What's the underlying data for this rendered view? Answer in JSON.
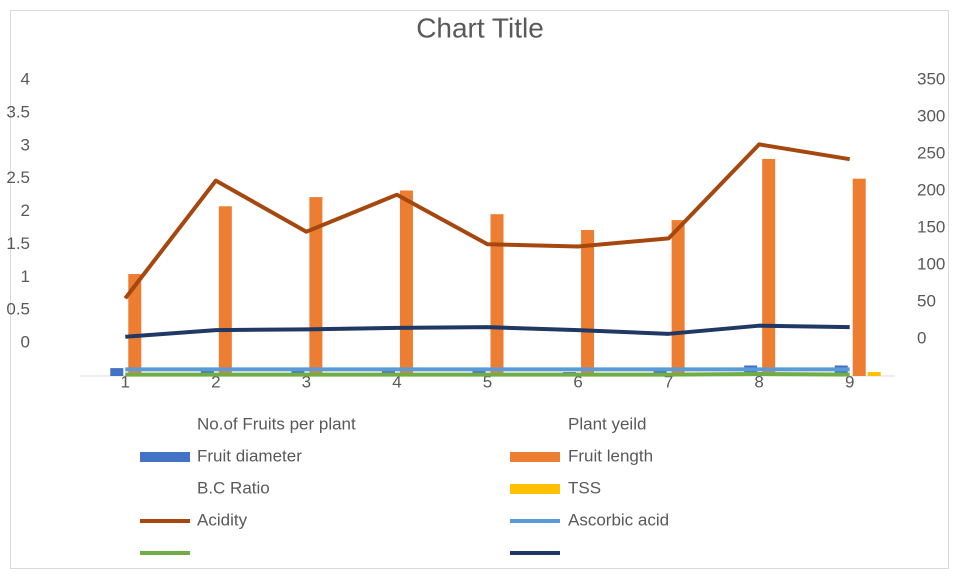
{
  "chart_data": {
    "type": "combo",
    "title": "Chart Title",
    "categories": [
      "1",
      "2",
      "3",
      "4",
      "5",
      "6",
      "7",
      "8",
      "9"
    ],
    "ylim": [
      -0.5,
      4
    ],
    "yticks": [
      0,
      0.5,
      1,
      1.5,
      2,
      2.5,
      3,
      3.5,
      4
    ],
    "y2lim": [
      -50,
      350
    ],
    "y2ticks": [
      0,
      50,
      100,
      150,
      200,
      250,
      300,
      350
    ],
    "legend": "bottom",
    "series": [
      {
        "name": "No.of Fruits per plant",
        "kind": "bar",
        "color": "#4472c4",
        "values": [
          null,
          null,
          null,
          null,
          null,
          null,
          null,
          null,
          null
        ]
      },
      {
        "name": "Plant yeild",
        "kind": "bar",
        "color": "#ed7d31",
        "values": [
          null,
          null,
          null,
          null,
          null,
          null,
          null,
          null,
          null
        ]
      },
      {
        "name": "Fruit diameter",
        "kind": "bar",
        "color": "#4472c4",
        "values": [
          -0.38,
          -0.42,
          -0.42,
          -0.42,
          -0.42,
          -0.44,
          -0.42,
          -0.34,
          -0.34
        ]
      },
      {
        "name": "Fruit length",
        "kind": "bar",
        "color": "#ed7d31",
        "values": [
          1.05,
          2.08,
          2.22,
          2.32,
          1.96,
          1.72,
          1.87,
          2.8,
          2.5
        ]
      },
      {
        "name": "B.C Ratio",
        "kind": "bar",
        "color": "#a5a5a5",
        "values": [
          null,
          null,
          null,
          null,
          null,
          null,
          null,
          null,
          null
        ]
      },
      {
        "name": "TSS",
        "kind": "bar",
        "color": "#ffc000",
        "values": [
          null,
          null,
          null,
          null,
          null,
          null,
          null,
          null,
          -0.44
        ]
      },
      {
        "name": "Acidity",
        "kind": "line",
        "axis": "y2",
        "color": "#a5470f",
        "values": [
          55,
          214,
          145,
          195,
          128,
          125,
          136,
          263,
          243
        ]
      },
      {
        "name": "Ascorbic acid",
        "kind": "line",
        "color": "#5b9bd5",
        "values": [
          -0.4,
          -0.4,
          -0.4,
          -0.4,
          -0.4,
          -0.4,
          -0.4,
          -0.4,
          -0.4
        ]
      },
      {
        "kind": "line",
        "color": "#70ad47",
        "values": [
          -0.48,
          -0.48,
          -0.48,
          -0.48,
          -0.48,
          -0.48,
          -0.48,
          -0.47,
          -0.48
        ]
      },
      {
        "kind": "line",
        "axis": "y2",
        "color": "#203864",
        "values": [
          3,
          12,
          13,
          15,
          16,
          12,
          7,
          18,
          16
        ]
      }
    ]
  }
}
